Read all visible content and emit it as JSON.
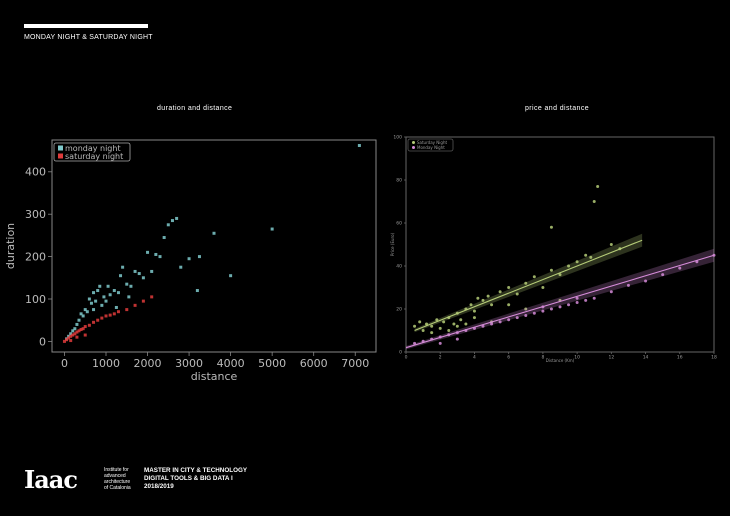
{
  "header": {
    "title": "MONDAY NIGHT & SATURDAY NIGHT"
  },
  "footer": {
    "logo_text": "Iaac",
    "institute_lines": [
      "Institute for",
      "advanced",
      "architecture",
      "of Catalonia"
    ],
    "program_lines": [
      "MASTER IN CITY & TECHNOLOGY",
      "DIGITAL TOOLS & BIG DATA I",
      "2018/2019"
    ]
  },
  "colors": {
    "background": "#000000",
    "monday": "#7fcacc",
    "saturday": "#e03b3b",
    "saturday_night_right": "#b5cc78",
    "monday_night_right": "#d58bd8",
    "axis_left": "#888888",
    "axis_right": "#666666"
  },
  "chart_data": [
    {
      "type": "scatter",
      "title": "duration  and  distance",
      "xlabel": "distance",
      "ylabel": "duration",
      "xlim": [
        -300,
        7500
      ],
      "ylim": [
        -25,
        475
      ],
      "xticks": [
        0,
        1000,
        2000,
        3000,
        4000,
        5000,
        6000,
        7000
      ],
      "xtick_labels": [
        "0",
        "1000",
        "2000",
        "3000",
        "4000",
        "5000",
        "6000",
        "7000"
      ],
      "yticks": [
        0,
        100,
        200,
        300,
        400
      ],
      "ytick_labels": [
        "0",
        "100",
        "200",
        "300",
        "400"
      ],
      "grid": false,
      "legend": "top-left",
      "series": [
        {
          "name": "monday night",
          "color": "#7fcacc",
          "points": [
            [
              7100,
              462
            ],
            [
              5000,
              265
            ],
            [
              4000,
              155
            ],
            [
              3600,
              255
            ],
            [
              3250,
              200
            ],
            [
              3200,
              120
            ],
            [
              2700,
              290
            ],
            [
              2600,
              285
            ],
            [
              2500,
              275
            ],
            [
              2400,
              245
            ],
            [
              2300,
              200
            ],
            [
              2200,
              205
            ],
            [
              2100,
              165
            ],
            [
              2000,
              210
            ],
            [
              1900,
              150
            ],
            [
              1800,
              160
            ],
            [
              1700,
              165
            ],
            [
              1600,
              130
            ],
            [
              1500,
              135
            ],
            [
              1400,
              175
            ],
            [
              1350,
              155
            ],
            [
              1300,
              115
            ],
            [
              1200,
              120
            ],
            [
              1100,
              110
            ],
            [
              1000,
              95
            ],
            [
              950,
              105
            ],
            [
              900,
              85
            ],
            [
              850,
              130
            ],
            [
              800,
              120
            ],
            [
              750,
              95
            ],
            [
              700,
              75
            ],
            [
              650,
              90
            ],
            [
              600,
              100
            ],
            [
              550,
              70
            ],
            [
              500,
              75
            ],
            [
              450,
              60
            ],
            [
              400,
              65
            ],
            [
              350,
              50
            ],
            [
              300,
              40
            ],
            [
              250,
              30
            ],
            [
              200,
              25
            ],
            [
              150,
              18
            ],
            [
              100,
              12
            ],
            [
              50,
              6
            ],
            [
              2800,
              175
            ],
            [
              3000,
              195
            ],
            [
              1550,
              105
            ],
            [
              1250,
              80
            ],
            [
              1050,
              130
            ],
            [
              700,
              115
            ]
          ]
        },
        {
          "name": "saturday night",
          "color": "#e03b3b",
          "points": [
            [
              0,
              0
            ],
            [
              50,
              4
            ],
            [
              100,
              8
            ],
            [
              150,
              12
            ],
            [
              200,
              15
            ],
            [
              250,
              18
            ],
            [
              300,
              22
            ],
            [
              350,
              25
            ],
            [
              400,
              28
            ],
            [
              450,
              30
            ],
            [
              500,
              35
            ],
            [
              600,
              38
            ],
            [
              700,
              45
            ],
            [
              800,
              50
            ],
            [
              900,
              55
            ],
            [
              1000,
              60
            ],
            [
              1100,
              62
            ],
            [
              1200,
              65
            ],
            [
              1300,
              70
            ],
            [
              1500,
              75
            ],
            [
              1700,
              85
            ],
            [
              1900,
              95
            ],
            [
              2100,
              105
            ],
            [
              300,
              10
            ],
            [
              500,
              15
            ],
            [
              150,
              2
            ]
          ]
        }
      ]
    },
    {
      "type": "scatter",
      "title": "price  and  distance",
      "xlabel": "Distance (Km)",
      "ylabel": "Price (Euro)",
      "xlim": [
        0,
        18
      ],
      "ylim": [
        0,
        100
      ],
      "xticks": [
        0,
        2,
        4,
        6,
        8,
        10,
        12,
        14,
        16,
        18
      ],
      "xtick_labels": [
        "0",
        "2",
        "4",
        "6",
        "8",
        "10",
        "12",
        "14",
        "16",
        "18"
      ],
      "yticks": [
        0,
        20,
        40,
        60,
        80,
        100
      ],
      "ytick_labels": [
        "0",
        "20",
        "40",
        "60",
        "80",
        "100"
      ],
      "grid": false,
      "legend": "top-left",
      "series": [
        {
          "name": "Saturday Night",
          "color": "#b5cc78",
          "points": [
            [
              0.5,
              12
            ],
            [
              0.8,
              14
            ],
            [
              1.0,
              10
            ],
            [
              1.2,
              13
            ],
            [
              1.5,
              12
            ],
            [
              1.8,
              15
            ],
            [
              2.0,
              11
            ],
            [
              2.2,
              14
            ],
            [
              2.5,
              16
            ],
            [
              2.8,
              13
            ],
            [
              3.0,
              18
            ],
            [
              3.2,
              15
            ],
            [
              3.5,
              20
            ],
            [
              3.8,
              22
            ],
            [
              4.0,
              19
            ],
            [
              4.2,
              25
            ],
            [
              4.5,
              24
            ],
            [
              4.8,
              26
            ],
            [
              5.0,
              22
            ],
            [
              5.5,
              28
            ],
            [
              6.0,
              30
            ],
            [
              6.5,
              27
            ],
            [
              7.0,
              32
            ],
            [
              7.5,
              35
            ],
            [
              8.0,
              30
            ],
            [
              8.5,
              38
            ],
            [
              9.0,
              36
            ],
            [
              9.5,
              40
            ],
            [
              10.0,
              42
            ],
            [
              10.5,
              45
            ],
            [
              11.0,
              70
            ],
            [
              11.2,
              77
            ],
            [
              10.8,
              44
            ],
            [
              12.0,
              50
            ],
            [
              12.5,
              48
            ],
            [
              8.5,
              58
            ],
            [
              3.0,
              12
            ],
            [
              2.5,
              10
            ],
            [
              1.5,
              9
            ],
            [
              6.0,
              22
            ],
            [
              5.0,
              14
            ],
            [
              7.0,
              20
            ],
            [
              9.0,
              24
            ],
            [
              4.0,
              16
            ],
            [
              3.5,
              13
            ]
          ],
          "fit_line": [
            [
              0.5,
              10
            ],
            [
              13.8,
              52
            ]
          ]
        },
        {
          "name": "Monday Night",
          "color": "#d58bd8",
          "points": [
            [
              0.5,
              4
            ],
            [
              1,
              5
            ],
            [
              1.5,
              6
            ],
            [
              2,
              7
            ],
            [
              2.5,
              8
            ],
            [
              3,
              9
            ],
            [
              3.5,
              10
            ],
            [
              4,
              11
            ],
            [
              4.5,
              12
            ],
            [
              5,
              13
            ],
            [
              5.5,
              14
            ],
            [
              6,
              15
            ],
            [
              6.5,
              16
            ],
            [
              7,
              17
            ],
            [
              7.5,
              18
            ],
            [
              8,
              19
            ],
            [
              8.5,
              20
            ],
            [
              9,
              21
            ],
            [
              9.5,
              22
            ],
            [
              10,
              23
            ],
            [
              10.5,
              24
            ],
            [
              11,
              25
            ],
            [
              12,
              28
            ],
            [
              13,
              31
            ],
            [
              14,
              33
            ],
            [
              15,
              36
            ],
            [
              16,
              39
            ],
            [
              17,
              42
            ],
            [
              18,
              45
            ],
            [
              2,
              4
            ],
            [
              3,
              6
            ],
            [
              8,
              21
            ],
            [
              10,
              25
            ]
          ],
          "fit_line": [
            [
              0,
              2
            ],
            [
              18,
              45
            ]
          ]
        }
      ]
    }
  ]
}
